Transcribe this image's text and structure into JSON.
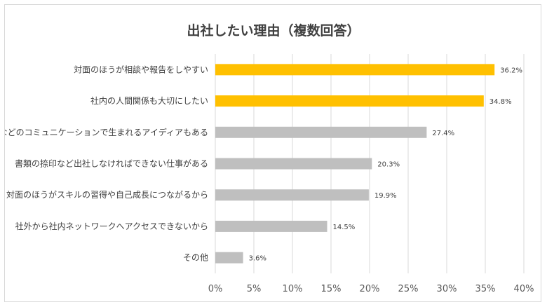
{
  "chart_data": {
    "type": "bar",
    "orientation": "horizontal",
    "title": "出社したい理由（複数回答）",
    "categories": [
      "対面のほうが相談や報告をしやすい",
      "社内の人間関係も大切にしたい",
      "雑談などのコミュニケーションで生まれるアイディアもある",
      "書類の捺印など出社しなければできない仕事がある",
      "対面のほうがスキルの習得や自己成長につながるから",
      "社外から社内ネットワークへアクセスできないから",
      "その他"
    ],
    "values": [
      36.2,
      34.8,
      27.4,
      20.3,
      19.9,
      14.5,
      3.6
    ],
    "value_labels": [
      "36.2%",
      "34.8%",
      "27.4%",
      "20.3%",
      "19.9%",
      "14.5%",
      "3.6%"
    ],
    "xlim": [
      0,
      40
    ],
    "x_ticks": [
      0,
      5,
      10,
      15,
      20,
      25,
      30,
      35,
      40
    ],
    "x_tick_labels": [
      "0%",
      "5%",
      "10%",
      "15%",
      "20%",
      "25%",
      "30%",
      "35%",
      "40%"
    ],
    "grid": true,
    "legend": "none",
    "colors": {
      "highlight": "#FFC000",
      "default": "#BFBFBF",
      "grid": "#D9D9D9"
    },
    "highlighted_count": 2
  }
}
